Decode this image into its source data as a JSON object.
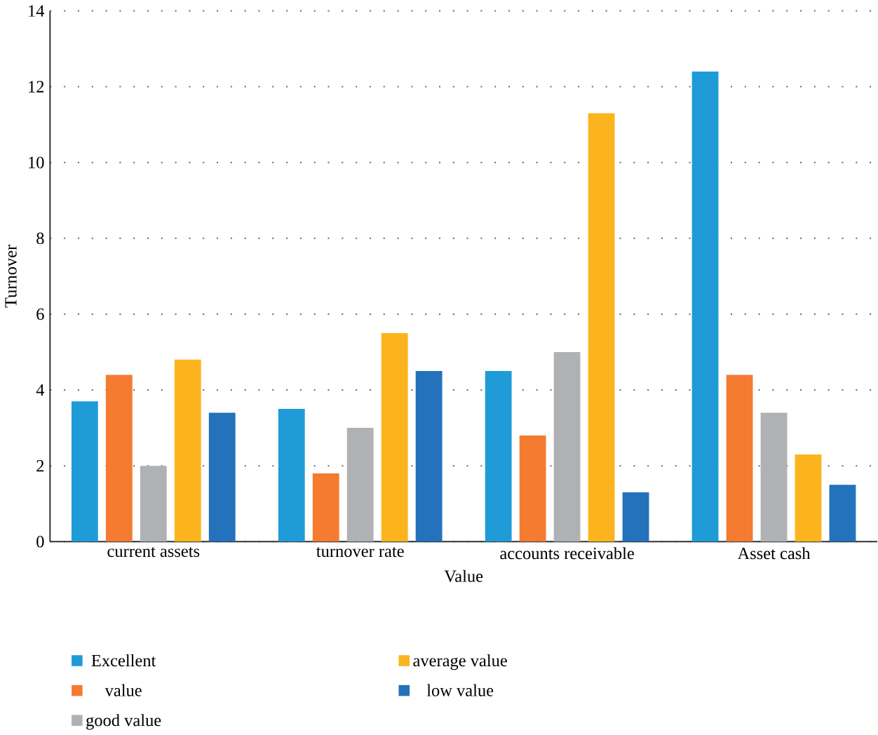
{
  "chart_data": {
    "type": "bar",
    "xlabel": "Value",
    "ylabel": "Turnover",
    "categories": [
      "current assets",
      "turnover rate",
      "accounts receivable",
      "Asset cash"
    ],
    "series": [
      {
        "name": "Excellent",
        "color": "#1f9cd8",
        "values": [
          3.7,
          3.5,
          4.5,
          12.4
        ]
      },
      {
        "name": "value",
        "color": "#f47b30",
        "values": [
          4.4,
          1.8,
          2.8,
          4.4
        ]
      },
      {
        "name": "good value",
        "color": "#b0b1b4",
        "values": [
          2.0,
          3.0,
          5.0,
          3.4
        ]
      },
      {
        "name": "average value",
        "color": "#fbb41e",
        "values": [
          4.8,
          5.5,
          11.3,
          2.3
        ]
      },
      {
        "name": "low value",
        "color": "#2372bb",
        "values": [
          3.4,
          4.5,
          1.3,
          1.5
        ]
      }
    ],
    "ylim": [
      0,
      14
    ],
    "yticks": [
      0,
      2,
      4,
      6,
      8,
      10,
      12,
      14
    ],
    "grid": "y",
    "legend": "bottom"
  }
}
